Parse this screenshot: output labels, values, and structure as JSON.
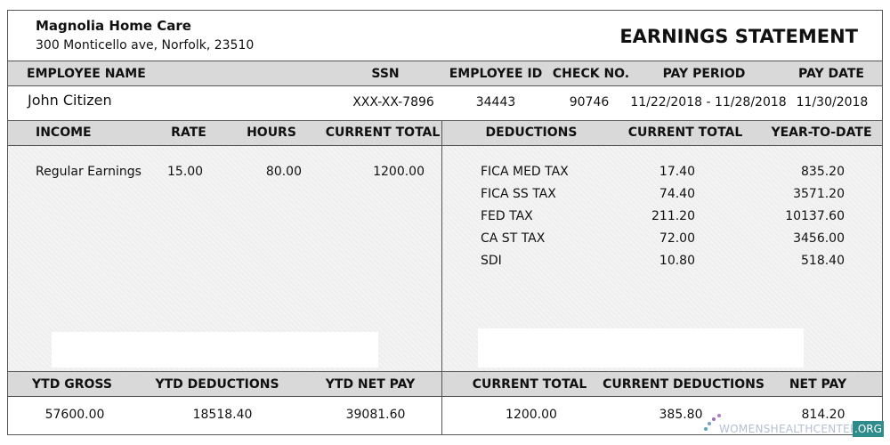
{
  "company": {
    "name": "Magnolia Home Care",
    "address": "300 Monticello ave, Norfolk, 23510"
  },
  "title": "EARNINGS STATEMENT",
  "employee": {
    "headers": [
      "EMPLOYEE NAME",
      "SSN",
      "EMPLOYEE ID",
      "CHECK NO.",
      "PAY PERIOD",
      "PAY DATE"
    ],
    "values": [
      "John Citizen",
      "XXX-XX-7896",
      "34443",
      "90746",
      "11/22/2018 - 11/28/2018",
      "11/30/2018"
    ]
  },
  "income": {
    "headers": [
      "INCOME",
      "RATE",
      "HOURS",
      "CURRENT TOTAL"
    ],
    "rows": [
      [
        "Regular Earnings",
        "15.00",
        "80.00",
        "1200.00"
      ]
    ]
  },
  "deductions": {
    "headers": [
      "DEDUCTIONS",
      "CURRENT TOTAL",
      "YEAR-TO-DATE"
    ],
    "rows": [
      [
        "FICA  MED TAX",
        "17.40",
        "835.20"
      ],
      [
        "FICA  SS TAX",
        "74.40",
        "3571.20"
      ],
      [
        "FED TAX",
        "211.20",
        "10137.60"
      ],
      [
        "CA  ST TAX",
        "72.00",
        "3456.00"
      ],
      [
        "SDI",
        "10.80",
        "518.40"
      ]
    ]
  },
  "summary_ytd": {
    "headers": [
      "YTD GROSS",
      "YTD DEDUCTIONS",
      "YTD NET PAY"
    ],
    "values": [
      "57600.00",
      "18518.40",
      "39081.60"
    ]
  },
  "summary_current": {
    "headers": [
      "CURRENT TOTAL",
      "CURRENT DEDUCTIONS",
      "NET PAY"
    ],
    "values": [
      "1200.00",
      "385.80",
      "814.20"
    ]
  },
  "watermark": {
    "site": "WOMENSHEALTHCENTER",
    "tld": ".ORG"
  }
}
